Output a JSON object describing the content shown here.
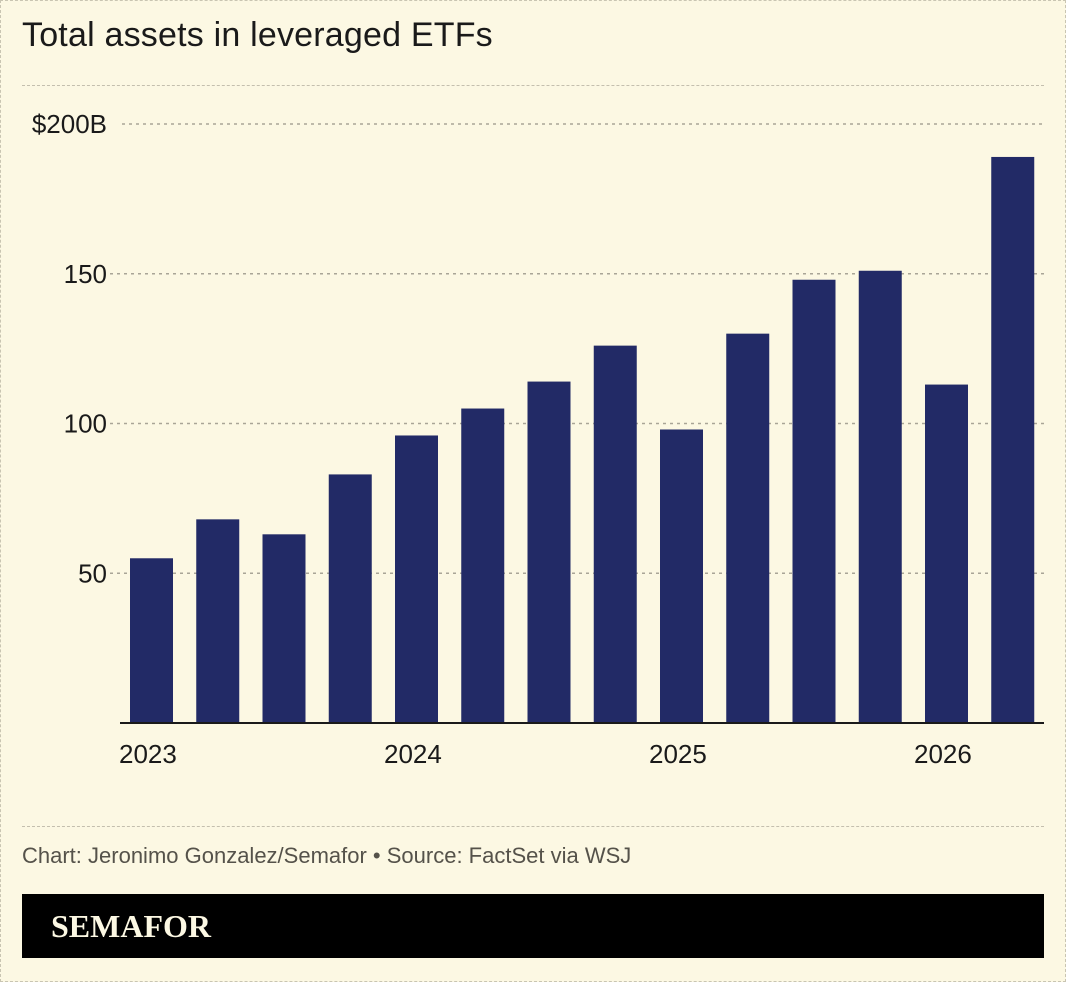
{
  "header": {
    "title": "Total assets in leveraged ETFs"
  },
  "chart_data": {
    "type": "bar",
    "title": "Total assets in leveraged ETFs",
    "xlabel": "",
    "ylabel": "",
    "ylim": [
      0,
      200
    ],
    "y_ticks": [
      {
        "value": 50,
        "label": "50"
      },
      {
        "value": 100,
        "label": "100"
      },
      {
        "value": 150,
        "label": "150"
      },
      {
        "value": 200,
        "label": "$200B"
      }
    ],
    "x_ticks": [
      {
        "index": 0,
        "label": "2023"
      },
      {
        "index": 4,
        "label": "2024"
      },
      {
        "index": 8,
        "label": "2025"
      },
      {
        "index": 12,
        "label": "2026"
      }
    ],
    "values": [
      55,
      68,
      63,
      83,
      96,
      105,
      114,
      126,
      98,
      130,
      148,
      151,
      113,
      189
    ],
    "bar_color": "#222a66",
    "grid": true
  },
  "footer": {
    "credit": "Chart: Jeronimo Gonzalez/Semafor • Source: FactSet via WSJ",
    "brand": "SEMAFOR"
  },
  "colors": {
    "background": "#fcf8e3",
    "bar": "#222a66",
    "brand_bar": "#000000",
    "brand_text": "#fcf8e3"
  }
}
